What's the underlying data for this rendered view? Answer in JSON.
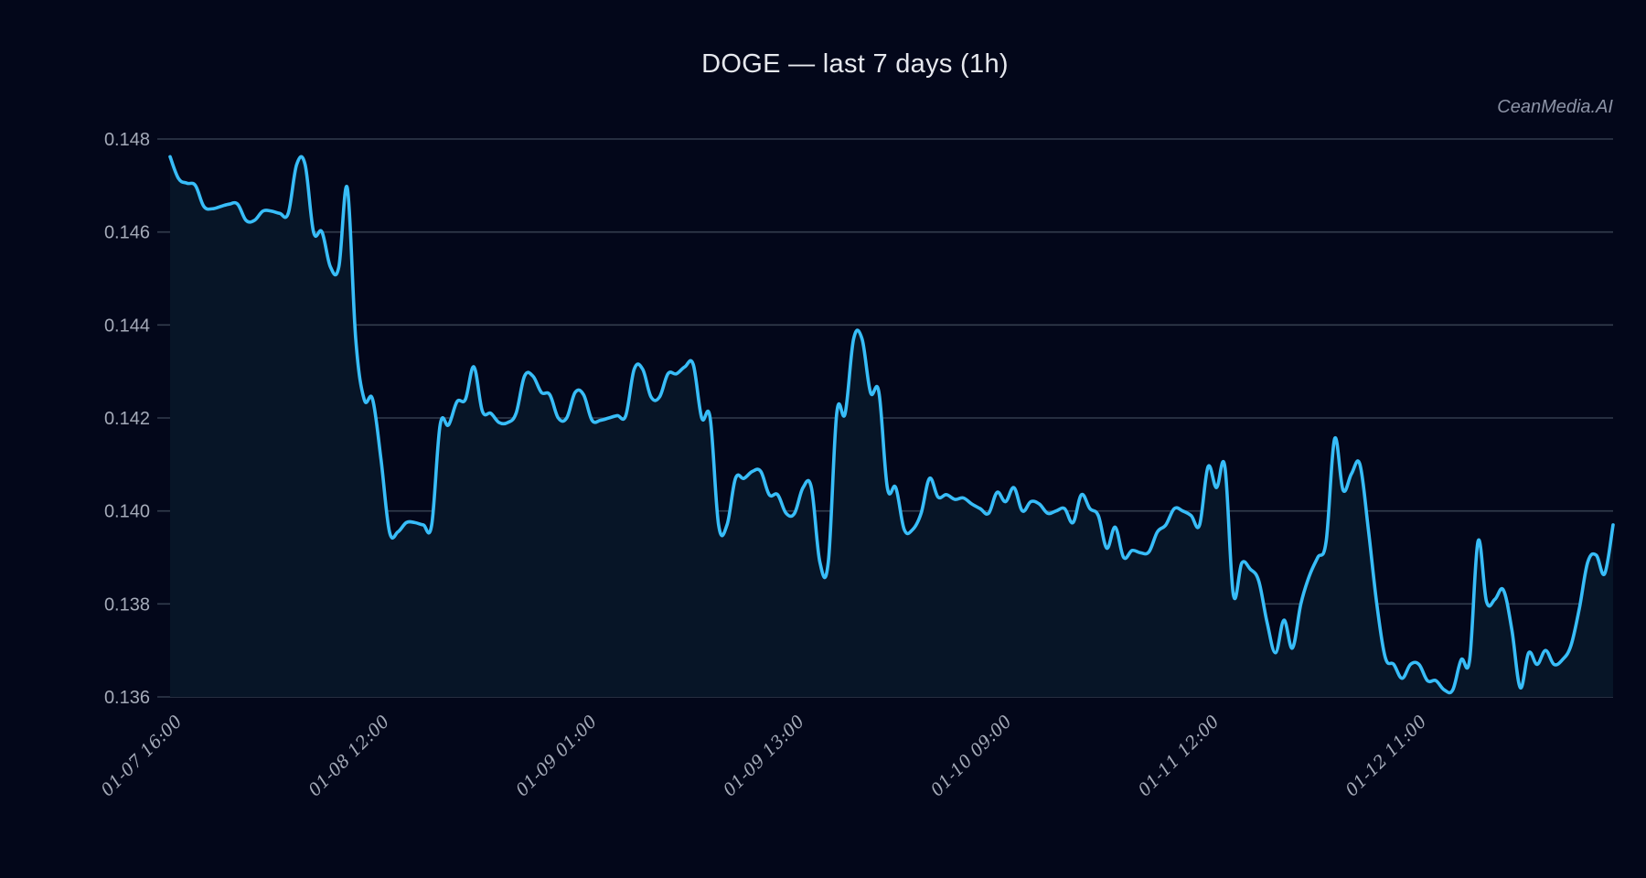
{
  "header": {
    "title": "DOGE — last 7 days (1h)",
    "watermark": "CeanMedia.AI"
  },
  "colors": {
    "background": "#03071a",
    "line": "#38bdf8",
    "fill": "#071527",
    "grid": "#333c4d",
    "tick_text": "#a4aab8"
  },
  "chart_data": {
    "type": "area",
    "title": "DOGE — last 7 days (1h)",
    "xlabel": "",
    "ylabel": "",
    "ylim": [
      0.136,
      0.148
    ],
    "yticks": [
      "0.136",
      "0.138",
      "0.140",
      "0.142",
      "0.144",
      "0.146",
      "0.148"
    ],
    "xtick_labels": [
      "01-07 16:00",
      "01-08 12:00",
      "01-09 01:00",
      "01-09 13:00",
      "01-10 09:00",
      "01-11 12:00",
      "01-12 11:00"
    ],
    "grid": true,
    "legend": "none",
    "annotation": "CeanMedia.AI",
    "series": [
      {
        "name": "DOGE",
        "values": [
          0.14762,
          0.14715,
          0.14705,
          0.147,
          0.14655,
          0.1465,
          0.14655,
          0.1466,
          0.1466,
          0.14625,
          0.14625,
          0.14645,
          0.14645,
          0.1464,
          0.1464,
          0.14745,
          0.14745,
          0.146,
          0.146,
          0.14525,
          0.14525,
          0.14695,
          0.1437,
          0.1424,
          0.1424,
          0.1411,
          0.13955,
          0.13955,
          0.13975,
          0.13975,
          0.1397,
          0.1397,
          0.14185,
          0.14185,
          0.14235,
          0.1424,
          0.1431,
          0.14215,
          0.1421,
          0.1419,
          0.1419,
          0.1421,
          0.1429,
          0.1429,
          0.14255,
          0.1425,
          0.142,
          0.142,
          0.14255,
          0.1425,
          0.14195,
          0.14195,
          0.142,
          0.14205,
          0.14205,
          0.14305,
          0.14305,
          0.14245,
          0.14245,
          0.14295,
          0.14295,
          0.1431,
          0.14315,
          0.142,
          0.142,
          0.1397,
          0.1397,
          0.1407,
          0.1407,
          0.14085,
          0.14085,
          0.14035,
          0.14035,
          0.13995,
          0.13995,
          0.1405,
          0.1405,
          0.1389,
          0.1389,
          0.1421,
          0.1421,
          0.1437,
          0.1437,
          0.14255,
          0.14255,
          0.1405,
          0.1405,
          0.1396,
          0.1396,
          0.13995,
          0.1407,
          0.1403,
          0.14035,
          0.14025,
          0.14028,
          0.14015,
          0.14005,
          0.13995,
          0.1404,
          0.1402,
          0.1405,
          0.14,
          0.1402,
          0.14015,
          0.13995,
          0.14,
          0.14005,
          0.13975,
          0.14035,
          0.14005,
          0.1399,
          0.1392,
          0.13965,
          0.139,
          0.13915,
          0.1391,
          0.13912,
          0.13955,
          0.1397,
          0.14005,
          0.14,
          0.1399,
          0.1397,
          0.14095,
          0.1405,
          0.14095,
          0.1382,
          0.13888,
          0.13875,
          0.1385,
          0.1376,
          0.13695,
          0.13765,
          0.13705,
          0.138,
          0.1386,
          0.139,
          0.13935,
          0.14155,
          0.14045,
          0.1408,
          0.141,
          0.1396,
          0.138,
          0.13685,
          0.1367,
          0.1364,
          0.1367,
          0.1367,
          0.13635,
          0.13635,
          0.13615,
          0.13615,
          0.1368,
          0.1368,
          0.13935,
          0.13805,
          0.1381,
          0.1383,
          0.13745,
          0.1362,
          0.13695,
          0.1367,
          0.137,
          0.1367,
          0.1368,
          0.1371,
          0.1379,
          0.1389,
          0.13905,
          0.13865,
          0.1397
        ]
      }
    ]
  }
}
